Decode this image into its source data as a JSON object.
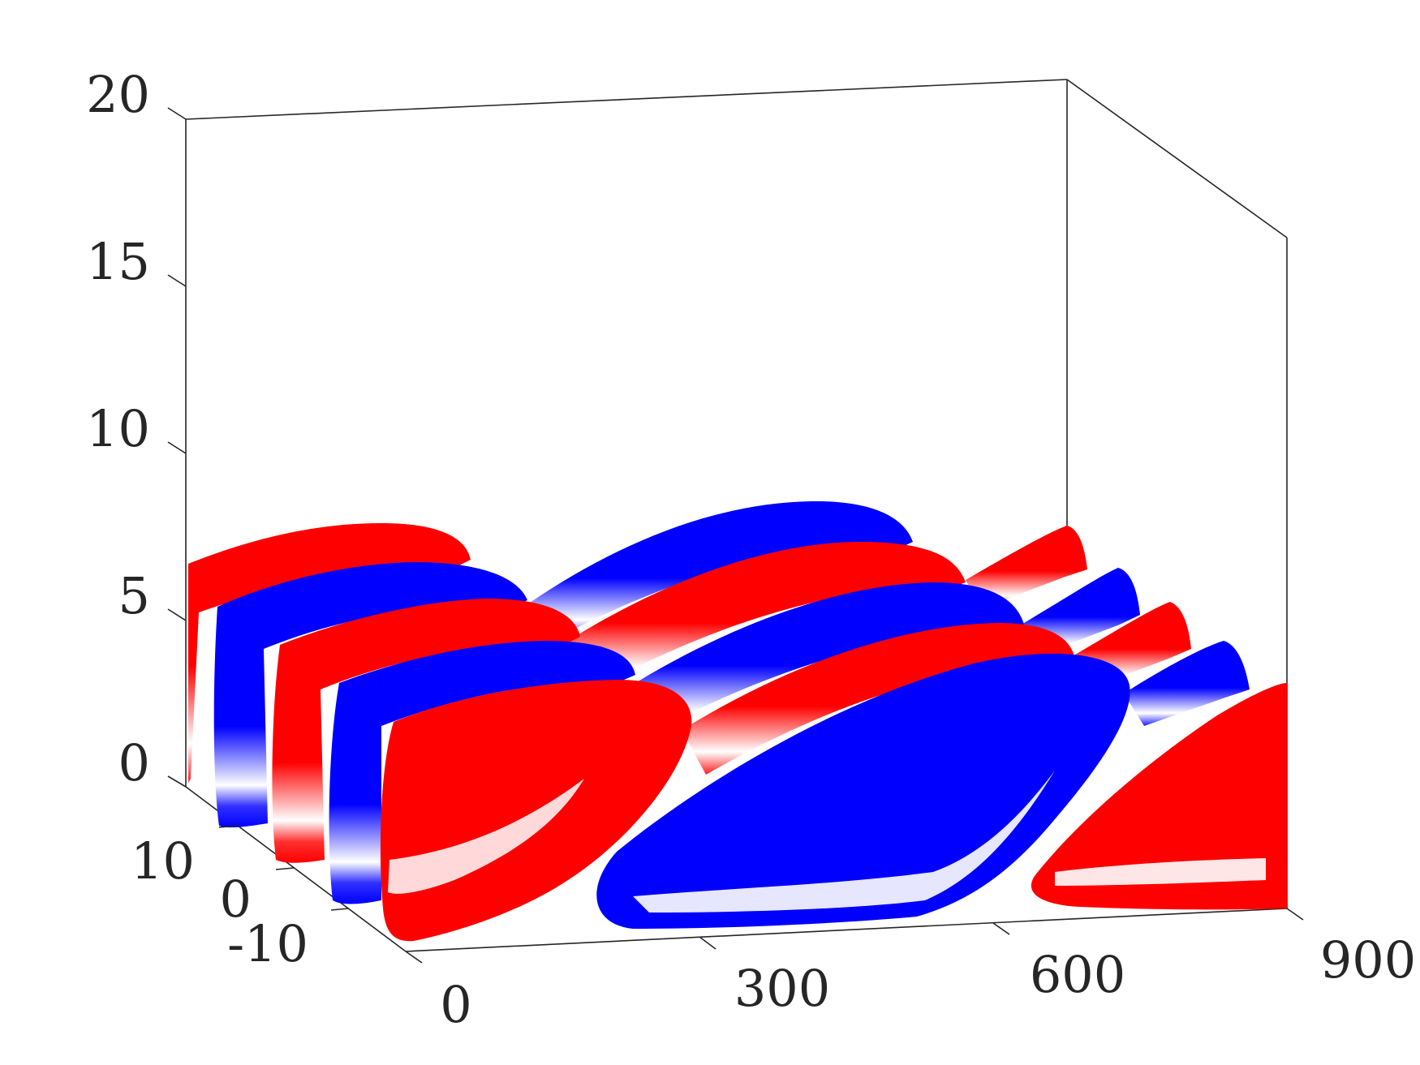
{
  "chart_data": {
    "type": "surface",
    "title": "",
    "xlabel": "",
    "ylabel": "",
    "zlabel": "",
    "xlim": [
      0,
      900
    ],
    "ylim": [
      -15,
      15
    ],
    "zlim": [
      0,
      20
    ],
    "xticks": [
      "0",
      "300",
      "600",
      "900"
    ],
    "yticks": [
      "-10",
      "0",
      "10"
    ],
    "zticks": [
      "0",
      "5",
      "10",
      "15",
      "20"
    ],
    "grid": false,
    "legend": "none",
    "colors": {
      "positive": "#ff0000",
      "negative": "#0000ff",
      "axis": "#262626"
    },
    "structures": [
      {
        "sign": "positive",
        "x_range": [
          0,
          330
        ],
        "y_center": 13,
        "z_max": 7
      },
      {
        "sign": "negative",
        "x_range": [
          0,
          340
        ],
        "y_center": 7,
        "z_max": 6
      },
      {
        "sign": "positive",
        "x_range": [
          0,
          350
        ],
        "y_center": 1,
        "z_max": 5.5
      },
      {
        "sign": "negative",
        "x_range": [
          0,
          360
        ],
        "y_center": -5,
        "z_max": 5
      },
      {
        "sign": "positive",
        "x_range": [
          0,
          330
        ],
        "y_center": -12,
        "z_max": 4.5
      },
      {
        "sign": "negative",
        "x_range": [
          330,
          720
        ],
        "y_center": 12,
        "z_max": 8.5
      },
      {
        "sign": "positive",
        "x_range": [
          360,
          740
        ],
        "y_center": 6,
        "z_max": 7.5
      },
      {
        "sign": "negative",
        "x_range": [
          380,
          760
        ],
        "y_center": 0,
        "z_max": 7
      },
      {
        "sign": "positive",
        "x_range": [
          400,
          780
        ],
        "y_center": -6,
        "z_max": 6
      },
      {
        "sign": "negative",
        "x_range": [
          360,
          820
        ],
        "y_center": -12,
        "z_max": 5
      },
      {
        "sign": "positive",
        "x_range": [
          780,
          900
        ],
        "y_center": 12,
        "z_max": 6.5
      },
      {
        "sign": "negative",
        "x_range": [
          790,
          900
        ],
        "y_center": 6,
        "z_max": 6
      },
      {
        "sign": "positive",
        "x_range": [
          800,
          900
        ],
        "y_center": 0,
        "z_max": 5.5
      },
      {
        "sign": "negative",
        "x_range": [
          820,
          900
        ],
        "y_center": -6,
        "z_max": 5
      },
      {
        "sign": "positive",
        "x_range": [
          740,
          900
        ],
        "y_center": -12,
        "z_max": 5
      }
    ]
  }
}
